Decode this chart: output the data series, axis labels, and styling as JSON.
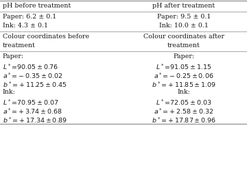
{
  "col_headers": [
    "pH before treatment",
    "pH after treatment"
  ],
  "ph_left": [
    "Paper: 6.2 ± 0.1",
    "Ink: 4.3 ± 0.1"
  ],
  "ph_right": [
    "Paper: 9.5 ± 0.1",
    "Ink: 10.0 ± 0.1"
  ],
  "cc_header_left": [
    "Colour coordinates before",
    "treatment"
  ],
  "cc_header_right": [
    "Colour coordinates after",
    "treatment"
  ],
  "paper_left": [
    "Paper:",
    "$L^* = 90.05 \\pm 0.76$",
    "$a^* = -0.35 \\pm 0.02$",
    "$b^* = +11.25 \\pm 0.45$"
  ],
  "paper_right": [
    "Paper:",
    "$L^* = 91.05 \\pm 1.15$",
    "$a^* = -0.25 \\pm 0.06$",
    "$b^* = +11.85 \\pm 1.09$"
  ],
  "ink_left": [
    "Ink:",
    "$L^* = 70.95 \\pm 0.07$",
    "$a^* = +3.74 \\pm 0.68$",
    "$b^* = +17.34 \\pm 0.89$"
  ],
  "ink_right": [
    "Ink:",
    "$L^* = 72.05 \\pm 0.03$",
    "$a^* = +2.58 \\pm 0.32$",
    "$b^* = +17.87 \\pm 0.96$"
  ],
  "bg_color": "#ffffff",
  "line_color": "#999999",
  "text_color": "#1a1a1a",
  "font_size": 6.8,
  "col_split": 0.465
}
